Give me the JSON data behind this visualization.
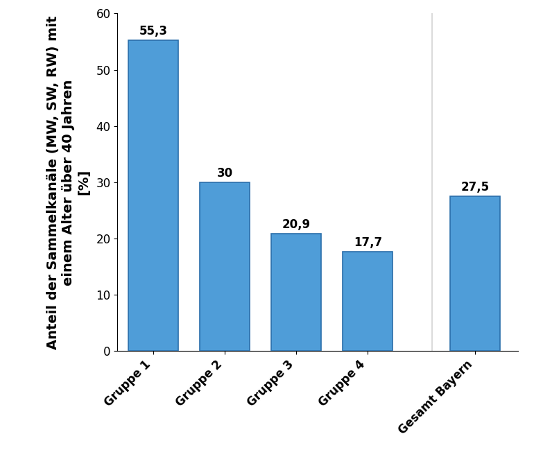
{
  "categories": [
    "Gruppe 1",
    "Gruppe 2",
    "Gruppe 3",
    "Gruppe 4",
    "Gesamt Bayern"
  ],
  "values": [
    55.3,
    30.0,
    20.9,
    17.7,
    27.5
  ],
  "bar_color": "#4f9dd8",
  "bar_edgecolor": "#2a6eaa",
  "ylabel_line1": "Anteil der Sammelkanäle (MW, SW, RW) mit",
  "ylabel_line2": "einem Alter über 40 Jahren",
  "ylabel_line3": "[%]",
  "ylim": [
    0,
    60
  ],
  "yticks": [
    0,
    10,
    20,
    30,
    40,
    50,
    60
  ],
  "value_labels": [
    "55,3",
    "30",
    "20,9",
    "17,7",
    "27,5"
  ],
  "label_fontsize": 12,
  "ylabel_fontsize": 14,
  "xtick_fontsize": 12,
  "ytick_fontsize": 12,
  "background_color": "#ffffff"
}
